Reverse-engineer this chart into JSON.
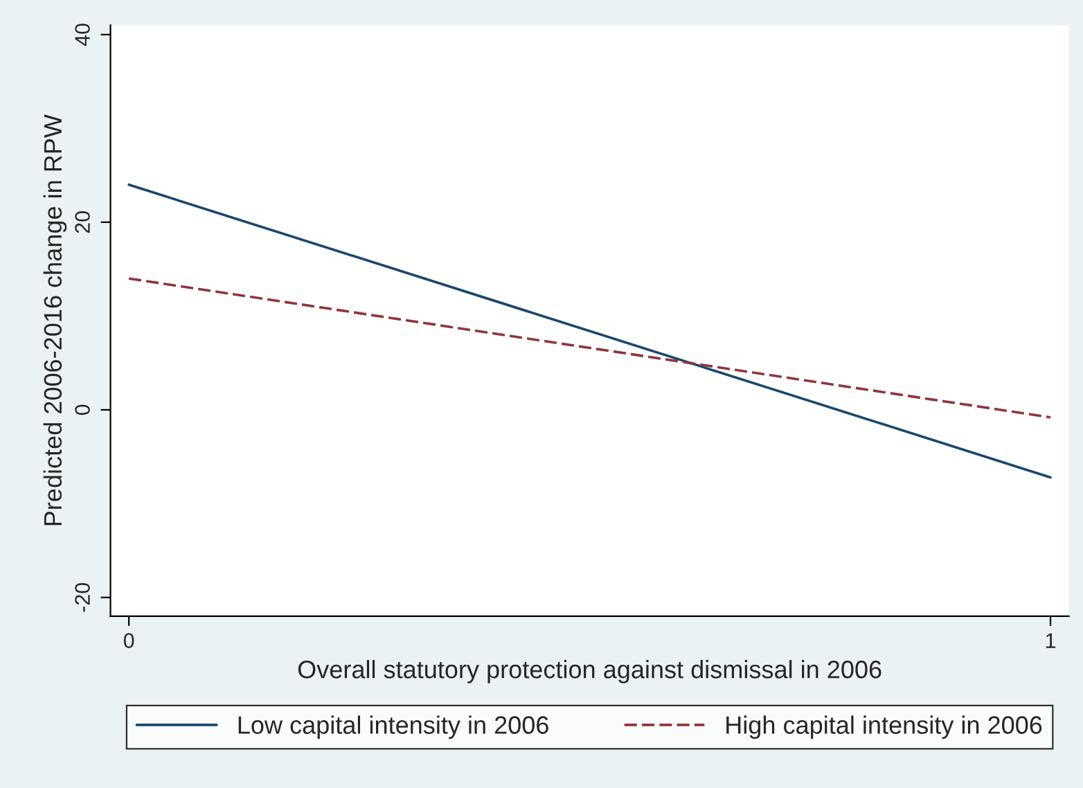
{
  "chart_data": {
    "type": "line",
    "xlabel": "Overall statutory protection against dismissal in 2006",
    "ylabel": "Predicted 2006-2016 change in RPW",
    "x": [
      0,
      1
    ],
    "series": [
      {
        "name": "Low capital intensity in 2006",
        "color": "#1a476f",
        "values": [
          24,
          -7.2
        ],
        "line_style": "solid"
      },
      {
        "name": "High capital intensity in 2006",
        "color": "#90353b",
        "values": [
          14,
          -0.8
        ],
        "line_style": "dashed"
      }
    ],
    "xlim": [
      -0.02,
      1.02
    ],
    "ylim": [
      -22,
      41
    ],
    "xticks": [
      0,
      1
    ],
    "yticks": [
      -20,
      0,
      20,
      40
    ],
    "grid": false,
    "legend": "bottom"
  }
}
